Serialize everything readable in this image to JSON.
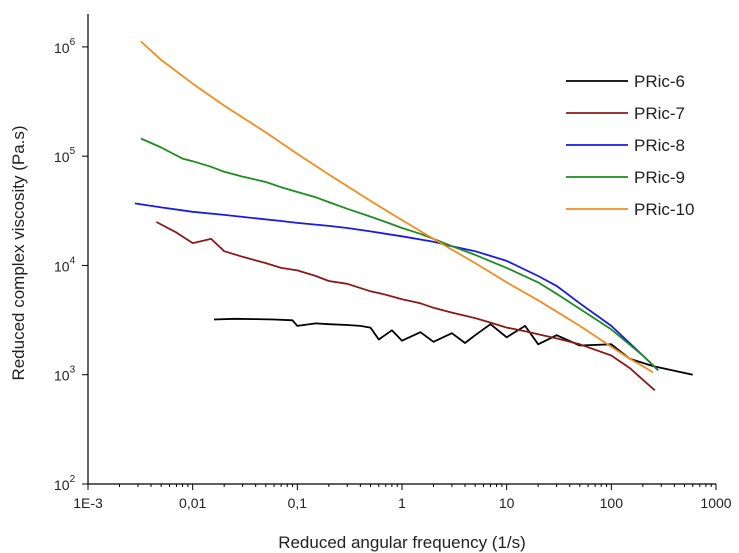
{
  "chart_data": {
    "type": "line",
    "title": "",
    "xlabel": "Reduced angular frequency (1/s)",
    "ylabel": "Reduced complex viscosity (Pa.s)",
    "xscale": "log",
    "yscale": "log",
    "xlim": [
      0.001,
      1000
    ],
    "ylim": [
      100,
      2000000
    ],
    "xticks": [
      {
        "value": 0.001,
        "label": "1E-3"
      },
      {
        "value": 0.01,
        "label": "0,01"
      },
      {
        "value": 0.1,
        "label": "0,1"
      },
      {
        "value": 1,
        "label": "1"
      },
      {
        "value": 10,
        "label": "10"
      },
      {
        "value": 100,
        "label": "100"
      },
      {
        "value": 1000,
        "label": "1000"
      }
    ],
    "yticks": [
      {
        "value": 100,
        "base": "10",
        "exp": "2"
      },
      {
        "value": 1000,
        "base": "10",
        "exp": "3"
      },
      {
        "value": 10000,
        "base": "10",
        "exp": "4"
      },
      {
        "value": 100000,
        "base": "10",
        "exp": "5"
      },
      {
        "value": 1000000,
        "base": "10",
        "exp": "6"
      }
    ],
    "grid": false,
    "legend_position": "top-right",
    "series": [
      {
        "name": "PRic-6",
        "color": "#000000",
        "x": [
          0.016,
          0.025,
          0.04,
          0.06,
          0.09,
          0.1,
          0.15,
          0.2,
          0.3,
          0.4,
          0.5,
          0.6,
          0.8,
          1,
          1.5,
          2,
          3,
          4,
          5,
          7,
          10,
          15,
          20,
          30,
          50,
          100,
          150,
          250,
          600
        ],
        "y": [
          3200,
          3250,
          3230,
          3200,
          3150,
          2800,
          2950,
          2900,
          2850,
          2800,
          2700,
          2100,
          2550,
          2050,
          2450,
          2000,
          2400,
          1950,
          2300,
          2900,
          2200,
          2800,
          1900,
          2300,
          1850,
          1900,
          1400,
          1200,
          1000
        ]
      },
      {
        "name": "PRic-7",
        "color": "#8B1A1A",
        "x": [
          0.0045,
          0.007,
          0.01,
          0.015,
          0.02,
          0.03,
          0.05,
          0.07,
          0.1,
          0.15,
          0.2,
          0.3,
          0.5,
          0.7,
          1,
          1.5,
          2,
          3,
          5,
          7,
          10,
          15,
          20,
          30,
          50,
          100,
          150,
          200,
          260
        ],
        "y": [
          25000,
          20000,
          16000,
          17500,
          13500,
          12000,
          10500,
          9500,
          9000,
          8000,
          7200,
          6800,
          5800,
          5400,
          4900,
          4500,
          4100,
          3700,
          3300,
          3000,
          2700,
          2500,
          2350,
          2150,
          1900,
          1500,
          1150,
          900,
          720
        ]
      },
      {
        "name": "PRic-8",
        "color": "#1A1AE6",
        "x": [
          0.0028,
          0.005,
          0.01,
          0.02,
          0.04,
          0.07,
          0.1,
          0.2,
          0.3,
          0.5,
          1,
          2,
          3,
          5,
          10,
          20,
          30,
          50,
          100,
          200,
          280
        ],
        "y": [
          37000,
          34000,
          31000,
          29000,
          27000,
          25500,
          24500,
          23000,
          22000,
          20500,
          18500,
          16500,
          15000,
          13500,
          11000,
          8000,
          6500,
          4500,
          2800,
          1500,
          1100
        ]
      },
      {
        "name": "PRic-9",
        "color": "#1E8C1E",
        "x": [
          0.0032,
          0.005,
          0.008,
          0.01,
          0.015,
          0.02,
          0.03,
          0.05,
          0.07,
          0.1,
          0.15,
          0.2,
          0.3,
          0.5,
          0.7,
          1,
          1.5,
          2,
          3,
          5,
          10,
          20,
          30,
          50,
          100,
          200,
          280
        ],
        "y": [
          145000,
          120000,
          95000,
          90000,
          80000,
          72000,
          65000,
          58000,
          52000,
          47000,
          42000,
          38000,
          33000,
          28000,
          25000,
          22000,
          19500,
          17500,
          15000,
          12500,
          9500,
          7000,
          5500,
          4000,
          2600,
          1500,
          1100
        ]
      },
      {
        "name": "PRic-10",
        "color": "#F28C1E",
        "x": [
          0.0032,
          0.005,
          0.01,
          0.02,
          0.05,
          0.1,
          0.2,
          0.5,
          1,
          2,
          5,
          10,
          20,
          50,
          100,
          150,
          200,
          250
        ],
        "y": [
          1120000,
          760000,
          460000,
          290000,
          165000,
          105000,
          68000,
          39000,
          26000,
          17500,
          10500,
          7000,
          4800,
          2800,
          1800,
          1400,
          1200,
          1050
        ]
      }
    ]
  }
}
